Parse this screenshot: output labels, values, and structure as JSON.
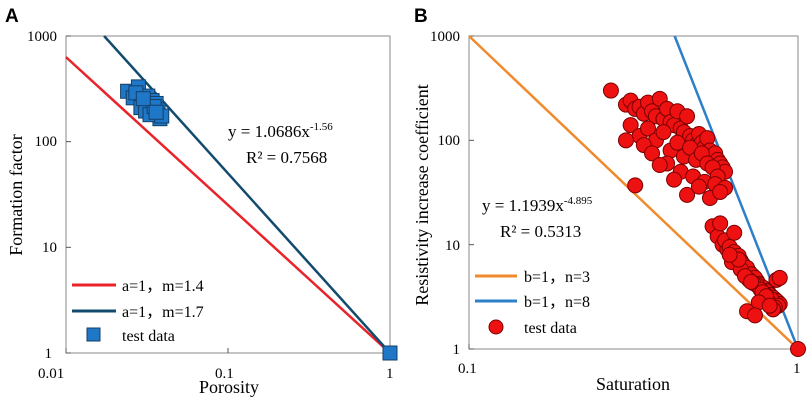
{
  "chart_data": [
    {
      "panel": "A",
      "type": "scatter",
      "xscale": "log",
      "yscale": "log",
      "xlim": [
        0.01,
        1
      ],
      "ylim": [
        1,
        1000
      ],
      "xlabel": "Porosity",
      "ylabel": "Formation factor",
      "xticks": [
        "0.01",
        "0.1",
        "1"
      ],
      "yticks": [
        "1",
        "10",
        "100",
        "1000"
      ],
      "lines": [
        {
          "name": "a=1，m=1.4",
          "a": 1,
          "m": 1.4,
          "color": "#e8232a"
        },
        {
          "name": "a=1，m=1.7",
          "a": 1,
          "m": 1.7,
          "color": "#124b6e"
        }
      ],
      "series": [
        {
          "name": "test data",
          "marker": "square",
          "color": "#1f77c8",
          "x": [
            0.024,
            0.028,
            0.026,
            0.032,
            0.03,
            0.029,
            0.034,
            0.036,
            0.031,
            0.037,
            0.038,
            0.027,
            0.033,
            0.035,
            0.039,
            0.03,
            0.036,
            1.0
          ],
          "y": [
            300,
            330,
            260,
            270,
            240,
            210,
            245,
            230,
            195,
            200,
            165,
            290,
            180,
            215,
            175,
            255,
            190,
            1
          ]
        }
      ],
      "equation": {
        "line1": "y = 1.0686x",
        "exponent": "-1.56",
        "r2": "R² = 0.7568"
      },
      "legend_position": "bottom-left"
    },
    {
      "panel": "B",
      "type": "scatter",
      "xscale": "log",
      "yscale": "log",
      "xlim": [
        0.1,
        1
      ],
      "ylim": [
        1,
        1000
      ],
      "xlabel": "Saturation",
      "ylabel": "Resistivity increase coefficient",
      "xticks": [
        "0.1",
        "1"
      ],
      "yticks": [
        "1",
        "10",
        "100",
        "1000"
      ],
      "lines": [
        {
          "name": "b=1，n=3",
          "b": 1,
          "n": 3,
          "color": "#f08a2c"
        },
        {
          "name": "b=1，n=8",
          "b": 1,
          "n": 8,
          "color": "#2e7fc9"
        }
      ],
      "series": [
        {
          "name": "test data",
          "marker": "circle",
          "color": "#ee1111",
          "x": [
            0.27,
            0.3,
            0.31,
            0.32,
            0.33,
            0.34,
            0.35,
            0.36,
            0.37,
            0.38,
            0.39,
            0.4,
            0.41,
            0.42,
            0.43,
            0.44,
            0.45,
            0.46,
            0.47,
            0.48,
            0.49,
            0.5,
            0.51,
            0.52,
            0.53,
            0.54,
            0.55,
            0.56,
            0.57,
            0.58,
            0.59,
            0.6,
            0.31,
            0.33,
            0.35,
            0.37,
            0.39,
            0.41,
            0.43,
            0.45,
            0.47,
            0.49,
            0.51,
            0.53,
            0.55,
            0.57,
            0.34,
            0.36,
            0.4,
            0.44,
            0.48,
            0.52,
            0.56,
            0.6,
            0.42,
            0.46,
            0.5,
            0.54,
            0.58,
            0.38,
            0.3,
            0.32,
            0.55,
            0.57,
            0.59,
            0.61,
            0.63,
            0.65,
            0.67,
            0.69,
            0.71,
            0.73,
            0.75,
            0.77,
            0.79,
            0.81,
            0.83,
            0.85,
            0.87,
            0.6,
            0.62,
            0.64,
            0.66,
            0.68,
            0.7,
            0.72,
            0.74,
            0.76,
            0.78,
            0.8,
            0.82,
            0.84,
            0.86,
            0.88,
            0.63,
            0.67,
            0.71,
            0.75,
            0.79,
            0.83,
            0.87,
            0.69,
            0.73,
            0.77,
            0.81,
            0.85,
            0.66,
            0.72,
            0.78,
            0.84,
            0.8,
            0.76,
            0.82,
            0.86,
            0.88,
            0.7,
            0.64,
            0.58,
            0.62,
            0.74,
            1.0
          ],
          "y": [
            300,
            220,
            240,
            200,
            210,
            180,
            230,
            190,
            170,
            250,
            160,
            200,
            150,
            140,
            190,
            130,
            120,
            170,
            110,
            100,
            90,
            115,
            95,
            85,
            105,
            80,
            70,
            75,
            65,
            60,
            55,
            50,
            140,
            110,
            130,
            100,
            120,
            80,
            95,
            70,
            85,
            65,
            75,
            60,
            55,
            45,
            90,
            75,
            60,
            50,
            45,
            40,
            38,
            35,
            42,
            30,
            36,
            28,
            32,
            58,
            100,
            37,
            15,
            12,
            10,
            9,
            8,
            7.5,
            7,
            6,
            5.5,
            5,
            4.5,
            4,
            3.8,
            3.5,
            3.2,
            3,
            2.8,
            11,
            9.5,
            8.5,
            7.8,
            6.5,
            6,
            5.2,
            4.8,
            4.2,
            3.9,
            3.6,
            3.3,
            3.1,
            2.9,
            2.7,
            6.8,
            5.8,
            4.6,
            4.1,
            3.4,
            3.0,
            2.6,
            5.0,
            4.3,
            3.7,
            2.9,
            2.5,
            7.2,
            4.4,
            3.5,
            2.4,
            3.2,
            2.8,
            2.6,
            4.6,
            4.8,
            2.3,
            13,
            16,
            8,
            2.1,
            1
          ]
        }
      ],
      "equation": {
        "line1": "y = 1.1939x",
        "exponent": "-4.895",
        "r2": "R² = 0.5313"
      },
      "legend_position": "bottom-left"
    }
  ],
  "legend_label": "test data"
}
